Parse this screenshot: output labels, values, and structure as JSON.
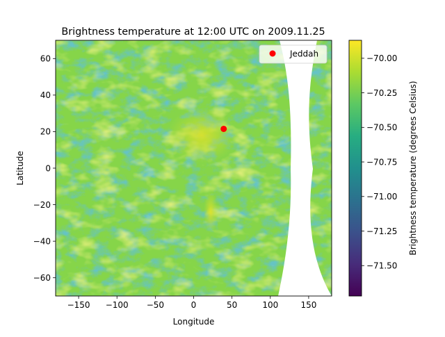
{
  "chart_data": {
    "type": "heatmap",
    "title": "Brightness temperature at 12:00 UTC on 2009.11.25",
    "xlabel": "Longitude",
    "ylabel": "Latitude",
    "xlim": [
      -180,
      180
    ],
    "ylim": [
      -70,
      70
    ],
    "x_ticks": [
      -150,
      -100,
      -50,
      0,
      50,
      100,
      150
    ],
    "x_tick_labels": [
      "−150",
      "−100",
      "−50",
      "0",
      "50",
      "100",
      "150"
    ],
    "y_ticks": [
      60,
      40,
      20,
      0,
      -20,
      -40,
      -60
    ],
    "y_tick_labels": [
      "60",
      "40",
      "20",
      "0",
      "−20",
      "−40",
      "−60"
    ],
    "colorbar": {
      "label": "Brightness temperature (degrees Celsius)",
      "colormap": "viridis",
      "range": [
        -71.72,
        -69.87
      ],
      "ticks": [
        -70.0,
        -70.25,
        -70.5,
        -70.75,
        -71.0,
        -71.25,
        -71.5
      ],
      "tick_labels": [
        "−70.00",
        "−70.25",
        "−70.50",
        "−70.75",
        "−71.00",
        "−71.25",
        "−71.50"
      ]
    },
    "no_data_region": "satellite coverage gap between about 125 and 160 longitude",
    "grid": false,
    "points": [
      {
        "name": "Jeddah",
        "lon": 39.2,
        "lat": 21.5,
        "color": "#ff0000"
      }
    ],
    "legend": {
      "placement": "upper right",
      "entries": [
        {
          "label": "Jeddah",
          "color": "#ff0000",
          "marker": "circle"
        }
      ]
    }
  }
}
